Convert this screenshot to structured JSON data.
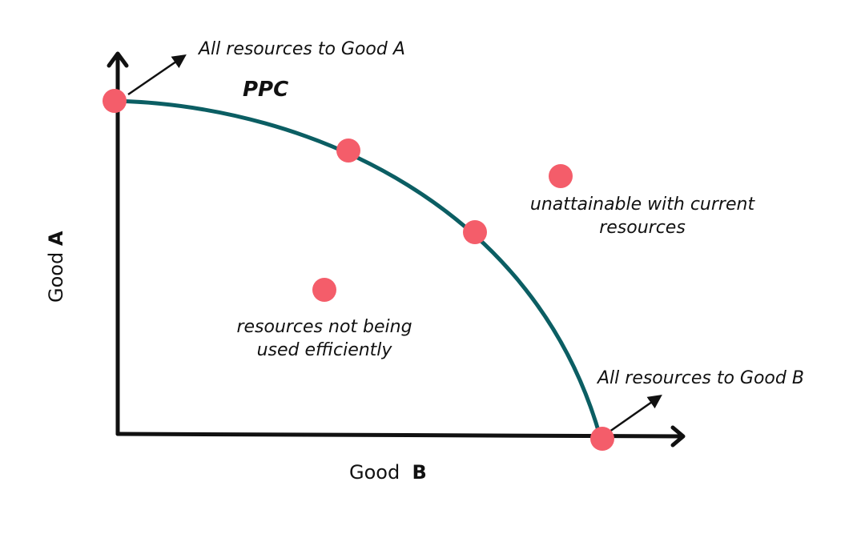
{
  "diagram": {
    "curve_label": "PPC",
    "y_axis": {
      "prefix": "Good",
      "letter": "A"
    },
    "x_axis": {
      "prefix": "Good",
      "letter": "B"
    },
    "annotations": {
      "all_to_a": "All resources to Good  A",
      "all_to_b": "All resources to Good  B",
      "unattainable_line1": "unattainable with current",
      "unattainable_line2": "resources",
      "inefficient_line1": "resources not being",
      "inefficient_line2": "used efficiently"
    },
    "colors": {
      "curve": "#0b5e63",
      "point": "#f45d6a",
      "axis": "#111111"
    }
  }
}
